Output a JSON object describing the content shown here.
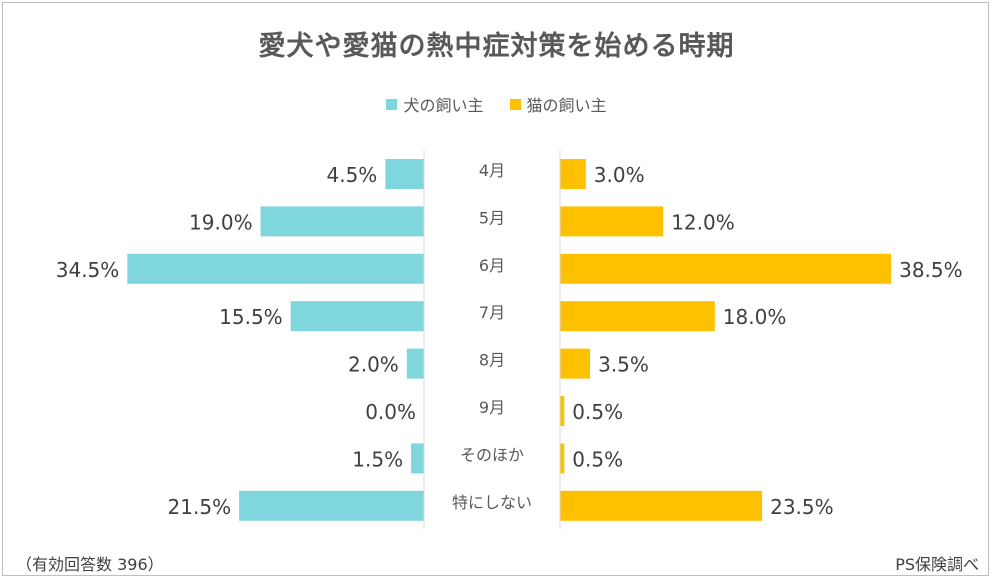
{
  "chart_data": {
    "type": "bar",
    "title": "愛犬や愛猫の熱中症対策を始める時期",
    "categories": [
      "4月",
      "5月",
      "6月",
      "7月",
      "8月",
      "9月",
      "そのほか",
      "特にしない"
    ],
    "series": [
      {
        "name": "犬の飼い主",
        "color": "#7fd6dc",
        "values": [
          4.5,
          19.0,
          34.5,
          15.5,
          2.0,
          0.0,
          1.5,
          21.5
        ],
        "labels": [
          "4.5%",
          "19.0%",
          "34.5%",
          "15.5%",
          "2.0%",
          "0.0%",
          "1.5%",
          "21.5%"
        ]
      },
      {
        "name": "猫の飼い主",
        "color": "#ffc000",
        "values": [
          3.0,
          12.0,
          38.5,
          18.0,
          3.5,
          0.5,
          0.5,
          23.5
        ],
        "labels": [
          "3.0%",
          "12.0%",
          "38.5%",
          "18.0%",
          "3.5%",
          "0.5%",
          "0.5%",
          "23.5%"
        ]
      }
    ],
    "legend_position": "top-center"
  },
  "footer": {
    "note": "（有効回答数 396）",
    "source": "PS保険調べ"
  }
}
